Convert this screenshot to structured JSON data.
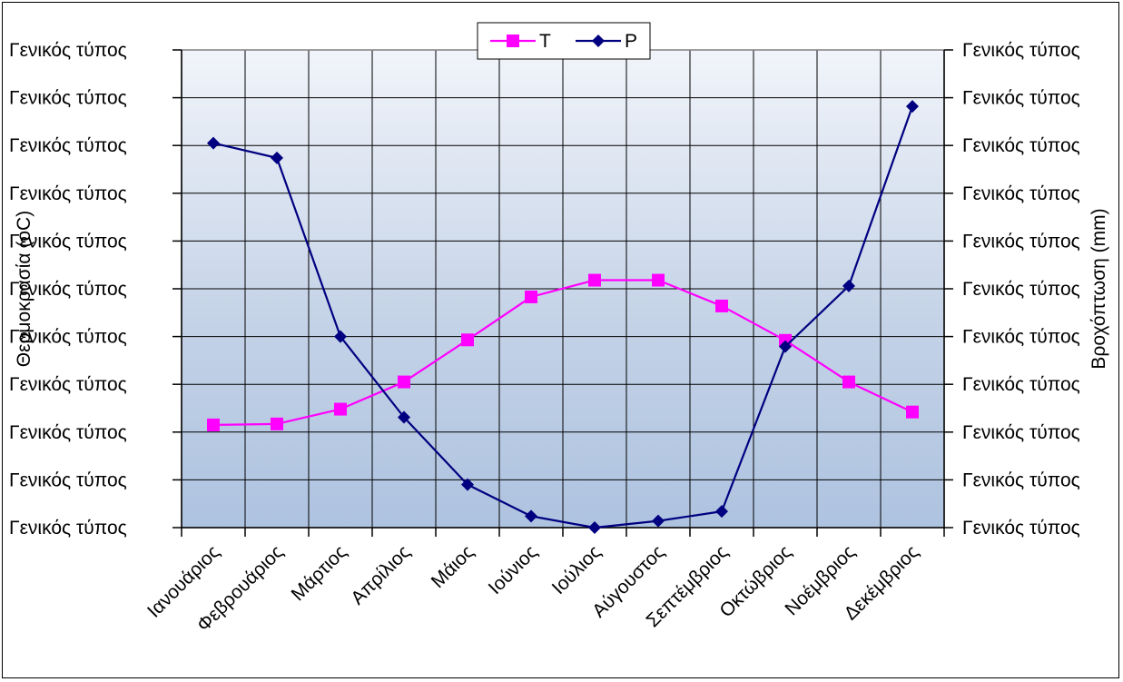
{
  "chart_data": {
    "type": "line",
    "categories": [
      "Ιανουάριος",
      "Φεβρουάριος",
      "Μάρτιος",
      "Απρίλιος",
      "Μάιος",
      "Ιούνιος",
      "Ιούλιος",
      "Αύγουστος",
      "Σεπτέμβριος",
      "Οκτώβριος",
      "Νοέμβριος",
      "Δεκέμβριος"
    ],
    "left_tick_labels": [
      "Γενικός τύπος",
      "Γενικός τύπος",
      "Γενικός τύπος",
      "Γενικός τύπος",
      "Γενικός τύπος",
      "Γενικός τύπος",
      "Γενικός τύπος",
      "Γενικός τύπος",
      "Γενικός τύπος",
      "Γενικός τύπος",
      "Γενικός τύπος"
    ],
    "right_tick_labels": [
      "Γενικός τύπος",
      "Γενικός τύπος",
      "Γενικός τύπος",
      "Γενικός τύπος",
      "Γενικός τύπος",
      "Γενικός τύπος",
      "Γενικός τύπος",
      "Γενικός τύπος",
      "Γενικός τύπος",
      "Γενικός τύπος",
      "Γενικός τύπος"
    ],
    "ylabel_left": "Θερμοκρασία (οC)",
    "ylabel_right": "Βροχόπτωση (mm)",
    "ylim": [
      0,
      10
    ],
    "grid": true,
    "legend_position": "top-center",
    "series": [
      {
        "name": "T",
        "axis": "left",
        "color": "#ff00ff",
        "marker": "square",
        "values": [
          2.15,
          2.17,
          2.48,
          3.05,
          3.93,
          4.83,
          5.18,
          5.18,
          4.64,
          3.92,
          3.05,
          2.42
        ]
      },
      {
        "name": "P",
        "axis": "right",
        "color": "#000080",
        "marker": "diamond",
        "values": [
          8.05,
          7.74,
          4.0,
          2.31,
          0.9,
          0.24,
          0.0,
          0.14,
          0.34,
          3.79,
          5.06,
          8.82
        ]
      }
    ]
  }
}
